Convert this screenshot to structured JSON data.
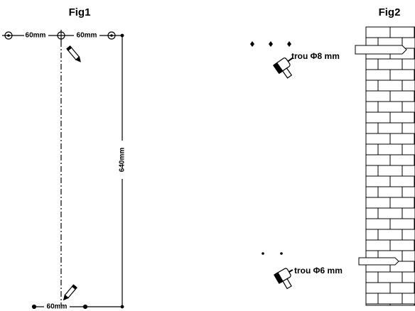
{
  "fig1": {
    "title": "Fig1",
    "top_left_label": "60mm",
    "top_right_label": "60mm",
    "height_label": "640mm",
    "bottom_label": "60mm"
  },
  "fig2": {
    "title": "Fig2",
    "top_hole_label": "trou Φ8 mm",
    "bottom_hole_label": "trou Φ6 mm"
  }
}
